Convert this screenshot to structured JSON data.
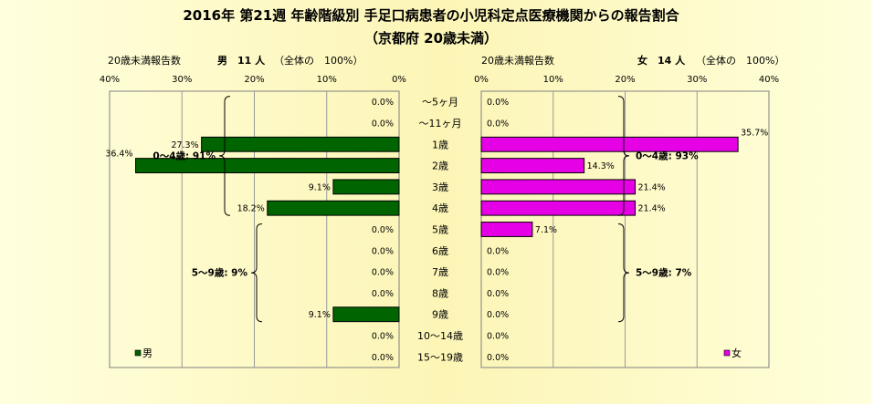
{
  "title_line1": "2016年 第21週 年齢階級別 手足口病患者の小児科定点医療機関からの報告割合",
  "title_line2": "（京都府 20歳未満）",
  "chart_data": {
    "type": "bar",
    "orientation": "horizontal",
    "layout": "population-pyramid",
    "categories": [
      "～5ヶ月",
      "～11ヶ月",
      "1歳",
      "2歳",
      "3歳",
      "4歳",
      "5歳",
      "6歳",
      "7歳",
      "8歳",
      "9歳",
      "10～14歳",
      "15～19歳"
    ],
    "xlim": [
      0,
      40
    ],
    "x_ticks": [
      "0%",
      "10%",
      "20%",
      "30%",
      "40%"
    ],
    "grid": true,
    "series": [
      {
        "name": "男",
        "color": "#006400",
        "side": "left",
        "header_prefix": "20歳未満報告数",
        "header_main": "男　11 人",
        "header_suffix": "（全体の　100%）",
        "values": [
          0.0,
          0.0,
          27.3,
          36.4,
          9.1,
          18.2,
          0.0,
          0.0,
          0.0,
          0.0,
          9.1,
          0.0,
          0.0
        ],
        "labels": [
          "0.0%",
          "0.0%",
          "27.3%",
          "36.4%",
          "9.1%",
          "18.2%",
          "0.0%",
          "0.0%",
          "0.0%",
          "0.0%",
          "9.1%",
          "0.0%",
          "0.0%"
        ],
        "groups": [
          {
            "label": "0～4歳: 91%"
          },
          {
            "label": "5～9歳: 9%"
          }
        ],
        "legend": "男"
      },
      {
        "name": "女",
        "color": "#e600e6",
        "side": "right",
        "header_prefix": "20歳未満報告数",
        "header_main": "女　14 人",
        "header_suffix": "（全体の　100%）",
        "values": [
          0.0,
          0.0,
          35.7,
          14.3,
          21.4,
          21.4,
          7.1,
          0.0,
          0.0,
          0.0,
          0.0,
          0.0,
          0.0
        ],
        "labels": [
          "0.0%",
          "0.0%",
          "35.7%",
          "14.3%",
          "21.4%",
          "21.4%",
          "7.1%",
          "0.0%",
          "0.0%",
          "0.0%",
          "0.0%",
          "0.0%",
          "0.0%"
        ],
        "groups": [
          {
            "label": "0～4歳: 93%"
          },
          {
            "label": "5～9歳: 7%"
          }
        ],
        "legend": "女"
      }
    ]
  }
}
